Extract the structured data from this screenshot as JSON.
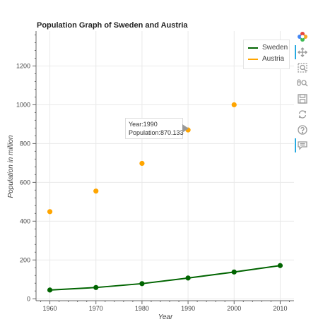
{
  "chart_data": {
    "type": "line",
    "title": "Population Graph of Sweden and Austria",
    "xlabel": "Year",
    "ylabel": "Population in million",
    "xlim": [
      1957,
      2013
    ],
    "ylim": [
      -10,
      1380
    ],
    "x_ticks": [
      1960,
      1970,
      1980,
      1990,
      2000,
      2010
    ],
    "y_ticks": [
      0,
      200,
      400,
      600,
      800,
      1000,
      1200
    ],
    "grid": true,
    "legend_position": "top-right",
    "series": [
      {
        "name": "Sweden",
        "color": "#006400",
        "style": "line-with-markers",
        "x": [
          1960,
          1970,
          1980,
          1990,
          2000,
          2010
        ],
        "y": [
          45,
          58,
          78,
          107,
          138,
          171
        ]
      },
      {
        "name": "Austria",
        "color": "#ffa500",
        "style": "markers-only",
        "x": [
          1960,
          1970,
          1980,
          1990,
          2000
        ],
        "y": [
          449,
          555,
          698,
          870.133,
          1000
        ]
      }
    ],
    "tooltip": {
      "line1": "Year:1990",
      "line2": "Population:870.133"
    }
  },
  "toolbar": {
    "icons": [
      "bokeh-logo-icon",
      "pan-icon",
      "box-zoom-icon",
      "wheel-zoom-icon",
      "save-icon",
      "reset-icon",
      "help-icon",
      "hover-icon"
    ]
  }
}
